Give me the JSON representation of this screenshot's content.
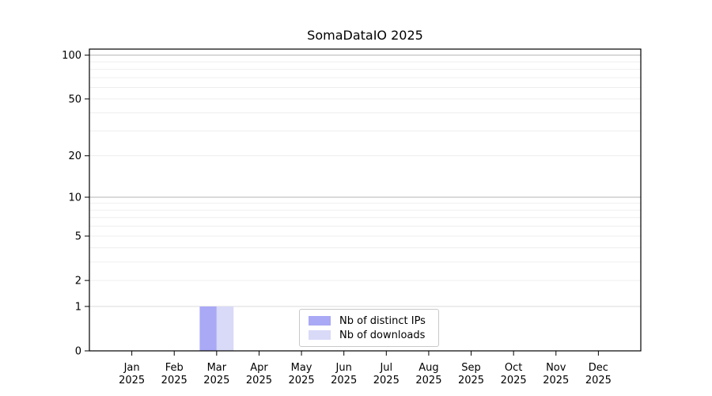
{
  "chart_data": {
    "type": "bar",
    "title": "SomaDataIO 2025",
    "categories": [
      "Jan",
      "Feb",
      "Mar",
      "Apr",
      "May",
      "Jun",
      "Jul",
      "Aug",
      "Sep",
      "Oct",
      "Nov",
      "Dec"
    ],
    "year": "2025",
    "series": [
      {
        "name": "Nb of distinct IPs",
        "color": "#a9a9f6",
        "values": [
          0,
          0,
          1,
          0,
          0,
          0,
          0,
          0,
          0,
          0,
          0,
          0
        ]
      },
      {
        "name": "Nb of downloads",
        "color": "#d9d9f8",
        "values": [
          0,
          0,
          1,
          0,
          0,
          0,
          0,
          0,
          0,
          0,
          0,
          0
        ]
      }
    ],
    "yscale": "log1p",
    "yticks": [
      0,
      1,
      2,
      5,
      10,
      20,
      50,
      100
    ],
    "ylim": [
      0,
      110
    ],
    "legend_position": "lower center",
    "axis_color": "#000000",
    "gridlines": [
      {
        "values": [
          2,
          3,
          4,
          5,
          6,
          7,
          8,
          9,
          20,
          30,
          40,
          50,
          60,
          70,
          80,
          90
        ],
        "color": "#ebebeb",
        "width": 0.8
      },
      {
        "values": [
          1
        ],
        "color": "#d5d5d5",
        "width": 0.9
      },
      {
        "values": [
          10,
          100
        ],
        "color": "#b4b4b4",
        "width": 1
      }
    ]
  }
}
